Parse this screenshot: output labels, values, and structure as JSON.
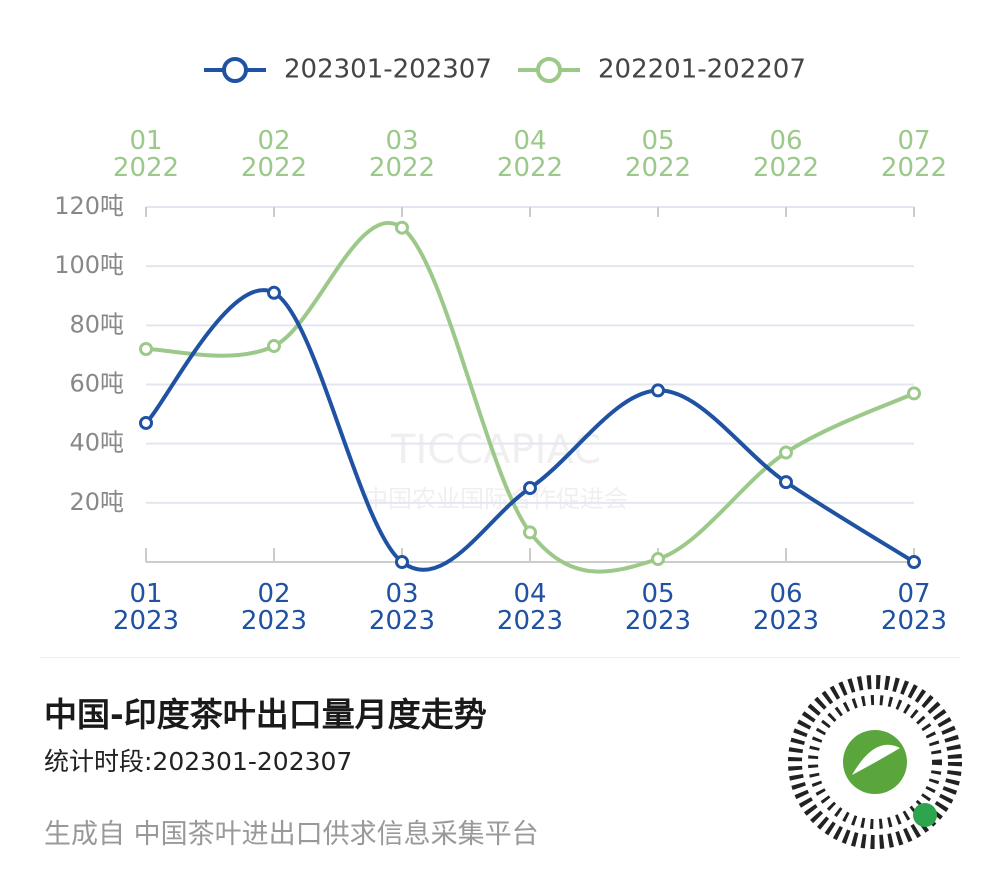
{
  "chart_data": {
    "type": "line",
    "categories": [
      "01\n2023",
      "02\n2023",
      "03\n2023",
      "04\n2023",
      "05\n2023",
      "06\n2023",
      "07\n2023"
    ],
    "x2_categories": [
      "01\n2022",
      "02\n2022",
      "03\n2022",
      "04\n2022",
      "05\n2022",
      "06\n2022",
      "07\n2022"
    ],
    "series": [
      {
        "name": "202301-202307",
        "color": "#1f52a3",
        "values": [
          47,
          91,
          0,
          25,
          58,
          27,
          0
        ]
      },
      {
        "name": "202201-202207",
        "color": "#9cc98a",
        "values": [
          72,
          73,
          113,
          10,
          1,
          37,
          57
        ]
      }
    ],
    "ylim": [
      0,
      120
    ],
    "yticks": [
      {
        "value": 20,
        "label": "20吨"
      },
      {
        "value": 40,
        "label": "40吨"
      },
      {
        "value": 60,
        "label": "60吨"
      },
      {
        "value": 80,
        "label": "80吨"
      },
      {
        "value": 100,
        "label": "100吨"
      },
      {
        "value": 120,
        "label": "120吨"
      }
    ],
    "grid": true,
    "watermark": [
      "TICCAPIAC",
      "中国农业国际合作促进会"
    ]
  },
  "footer": {
    "title": "中国-印度茶叶出口量月度走势",
    "subtitle": "统计时段:202301-202307",
    "source": "生成自 中国茶叶进出口供求信息采集平台"
  }
}
